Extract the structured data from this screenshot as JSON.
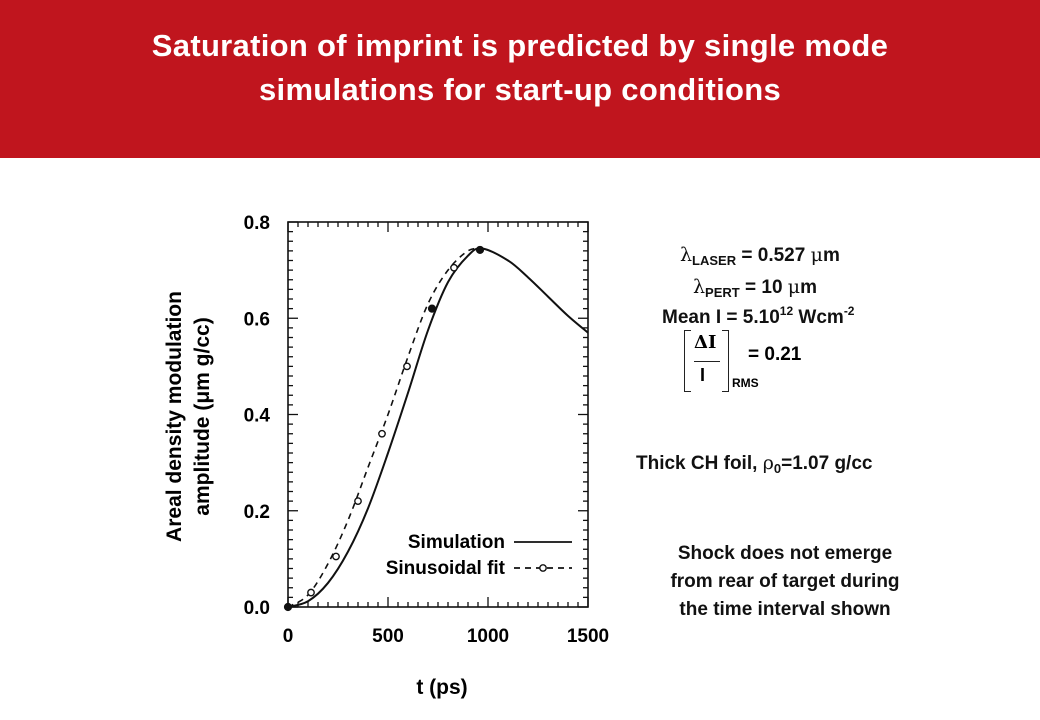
{
  "slide": {
    "title_line1": "Saturation of imprint is predicted by single mode",
    "title_line2": "simulations for start-up conditions",
    "banner_color": "#c0151e"
  },
  "annotations": {
    "laser_lambda": {
      "symbol": "λ",
      "sub": "LASER",
      "rest": " = 0.527 ",
      "mu": "μ",
      "unit": "m"
    },
    "pert_lambda": {
      "symbol": "λ",
      "sub": "PERT",
      "rest": " = 10 ",
      "mu": "μ",
      "unit": "m"
    },
    "mean_intensity": {
      "pre": "Mean I = 5.10",
      "sup1": "12",
      "mid": " Wcm",
      "sup2": "-2"
    },
    "rms": {
      "num": "ΔI",
      "den": "I",
      "sub": "RMS",
      "value": "= 0.21"
    },
    "foil": {
      "pre": "Thick CH foil, ",
      "rho": "ρ",
      "sub": "0",
      "rest": "=1.07 g/cc"
    },
    "shock_note": [
      "Shock does not emerge",
      "from rear of target during",
      "the time interval shown"
    ]
  },
  "chart_data": {
    "type": "line",
    "xlabel": "t (ps)",
    "ylabel_line1": "Areal density modulation",
    "ylabel_line2": "amplitude (μm g/cc)",
    "xlim": [
      0,
      1500
    ],
    "ylim": [
      0,
      0.8
    ],
    "x_ticks": [
      0,
      500,
      1000,
      1500
    ],
    "y_ticks": [
      "0.0",
      "0.2",
      "0.4",
      "0.6",
      "0.8"
    ],
    "legend_position": "bottom-right",
    "series": [
      {
        "name": "Simulation",
        "style": "solid",
        "x": [
          0,
          100,
          200,
          300,
          400,
          500,
          600,
          700,
          800,
          900,
          970,
          1100,
          1200,
          1300,
          1400,
          1500
        ],
        "y": [
          0.0,
          0.012,
          0.05,
          0.115,
          0.205,
          0.32,
          0.445,
          0.575,
          0.675,
          0.73,
          0.745,
          0.72,
          0.685,
          0.645,
          0.605,
          0.57
        ]
      },
      {
        "name": "Sinusoidal fit",
        "style": "dashed",
        "x": [
          0,
          100,
          200,
          300,
          400,
          500,
          600,
          700,
          800,
          900,
          970
        ],
        "y": [
          0.0,
          0.025,
          0.09,
          0.18,
          0.29,
          0.4,
          0.52,
          0.63,
          0.7,
          0.74,
          0.745
        ],
        "markers_open": [
          [
            115,
            0.03
          ],
          [
            240,
            0.105
          ],
          [
            350,
            0.22
          ],
          [
            470,
            0.36
          ],
          [
            595,
            0.5
          ],
          [
            830,
            0.705
          ]
        ],
        "markers_filled": [
          [
            0,
            0.0
          ],
          [
            720,
            0.62
          ],
          [
            960,
            0.742
          ]
        ]
      }
    ]
  }
}
